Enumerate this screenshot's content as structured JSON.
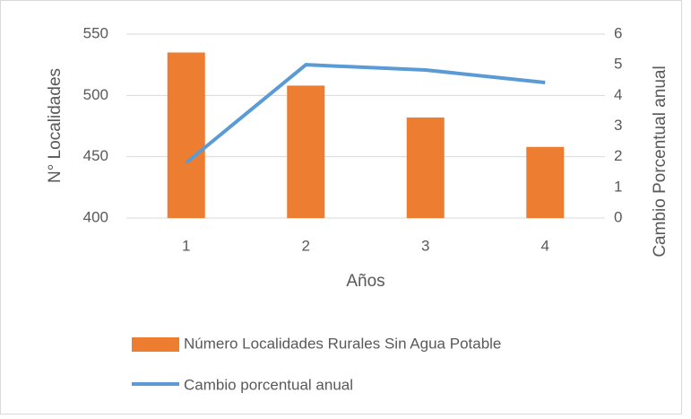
{
  "chart_data": {
    "type": "bar",
    "xlabel": "Años",
    "ylabel": "N° Localidades",
    "y2label": "Cambio Porcentual anual",
    "categories": [
      "1",
      "2",
      "3",
      "4"
    ],
    "series": [
      {
        "name": "Número Localidades Rurales Sin Agua Potable",
        "color": "#ed7d31",
        "type": "bar",
        "values": [
          535,
          508,
          482,
          458
        ]
      },
      {
        "name": "Cambio porcentual anual",
        "color": "#5b9bd5",
        "type": "line",
        "axis": "y2",
        "values": [
          1.8,
          5.0,
          4.83,
          4.42
        ]
      }
    ],
    "ylim": [
      400,
      550
    ],
    "yticks": [
      400,
      450,
      500,
      550
    ],
    "y2lim": [
      0,
      6
    ],
    "y2ticks": [
      0,
      1,
      2,
      3,
      4,
      5,
      6
    ],
    "grid": true,
    "legend": "bottom"
  }
}
